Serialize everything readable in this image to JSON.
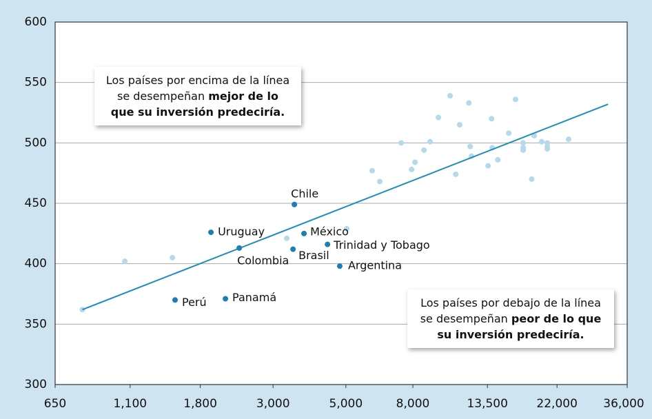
{
  "chart_data": {
    "type": "scatter",
    "xlog": true,
    "xlim": [
      650,
      36000
    ],
    "xticks": [
      650,
      {
        "value": 1100,
        "label": "1,100"
      },
      {
        "value": 1800,
        "label": "1,800"
      },
      {
        "value": 3000,
        "label": "3,000"
      },
      {
        "value": 5000,
        "label": "5,000"
      },
      {
        "value": 8000,
        "label": "8,000"
      },
      {
        "value": 13500,
        "label": "13,500"
      },
      {
        "value": 22000,
        "label": "22,000"
      },
      {
        "value": 36000,
        "label": "36,000"
      }
    ],
    "ylim": [
      300,
      600
    ],
    "yticks": [
      300,
      350,
      400,
      450,
      500,
      550,
      600
    ],
    "grid": true,
    "highlight_color": "#1b7fb3",
    "other_color": "#b5d8eb",
    "trend_color": "#1b8dbf",
    "highlighted": {
      "labels": [
        "Chile",
        "Uruguay",
        "Colombia",
        "Brasil",
        "México",
        "Trinidad y Tobago",
        "Argentina",
        "Perú",
        "Panamá"
      ],
      "x": [
        3484,
        1940,
        2366,
        3450,
        3727,
        4395,
        4790,
        1508,
        2147
      ],
      "y": [
        449,
        426,
        413,
        412,
        425,
        416,
        398,
        370,
        371
      ]
    },
    "others": {
      "x": [
        787,
        1060,
        1480,
        3302,
        5030,
        6015,
        6345,
        7370,
        7930,
        8120,
        8650,
        9030,
        9570,
        10390,
        10810,
        11110,
        11850,
        11960,
        12070,
        13560,
        13900,
        13960,
        14520,
        15680,
        16450,
        17350,
        17350,
        17350,
        18420,
        18740,
        19760,
        20550,
        20550,
        20550,
        23870
      ],
      "y": [
        362,
        402,
        405,
        421,
        429,
        477,
        468,
        500,
        478,
        484,
        494,
        501,
        521,
        539,
        474,
        515,
        533,
        497,
        489,
        481,
        520,
        496,
        486,
        508,
        536,
        500,
        496,
        494,
        470,
        506,
        501,
        500,
        497,
        495,
        503
      ]
    },
    "trend_line": {
      "x": [
        787,
        31480
      ],
      "y": [
        362,
        532
      ]
    },
    "annotations": [
      {
        "text": "Los países por encima de la línea se desempeñan",
        "bold": "mejor de lo que su inversión predeciría."
      },
      {
        "text": "Los países por debajo de la línea se desempeñan",
        "bold": "peor de lo que su inversión predeciría."
      }
    ]
  }
}
